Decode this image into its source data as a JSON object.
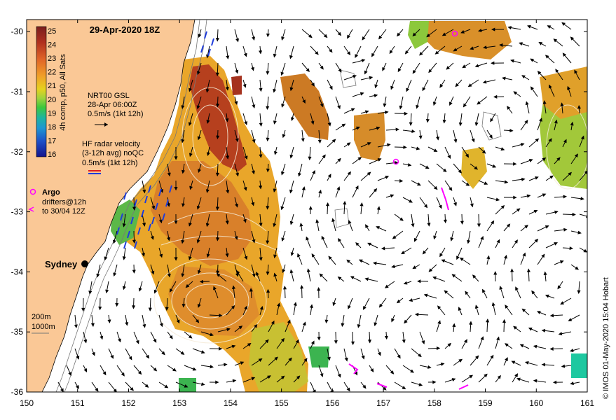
{
  "map": {
    "title": "29-Apr-2020 18Z",
    "credit": "© IMOS 01-May-2020 15:04 Hobart",
    "lon_range": [
      150,
      161
    ],
    "lat_range": [
      -36,
      -29.8
    ],
    "x_ticks": [
      "150",
      "151",
      "152",
      "153",
      "154",
      "155",
      "156",
      "157",
      "158",
      "159",
      "160",
      "161"
    ],
    "y_ticks": [
      "-30",
      "-31",
      "-32",
      "-33",
      "-34",
      "-35",
      "-36"
    ],
    "colors": {
      "land": "#fac896",
      "ocean": "#ffffff",
      "warm_core": "#a8321e",
      "sst_mid": "#e6a028",
      "sst_low": "#8cc83c",
      "argo": "#ff00ff",
      "radar_arrow": "#1e3cdc"
    }
  },
  "colorbar": {
    "label": "4h comp, p50, All Sats",
    "ticks": [
      "25",
      "24",
      "23",
      "22",
      "21",
      "20",
      "19",
      "18",
      "17",
      "16"
    ]
  },
  "legend": {
    "altimetry_title": "NRT00 GSL",
    "altimetry_date": "28-Apr 06:00Z",
    "altimetry_scale": "0.5m/s (1kt 12h)",
    "radar_title": "HF radar velocity",
    "radar_sub": "(3-12h avg) noQC",
    "radar_scale": "0.5m/s (1kt 12h)",
    "argo_label": "Argo",
    "drifters_line1": "drifters@12h",
    "drifters_line2": "to 30/04 12Z",
    "city": "Sydney",
    "isobath1": "200m",
    "isobath2": "1000m"
  }
}
